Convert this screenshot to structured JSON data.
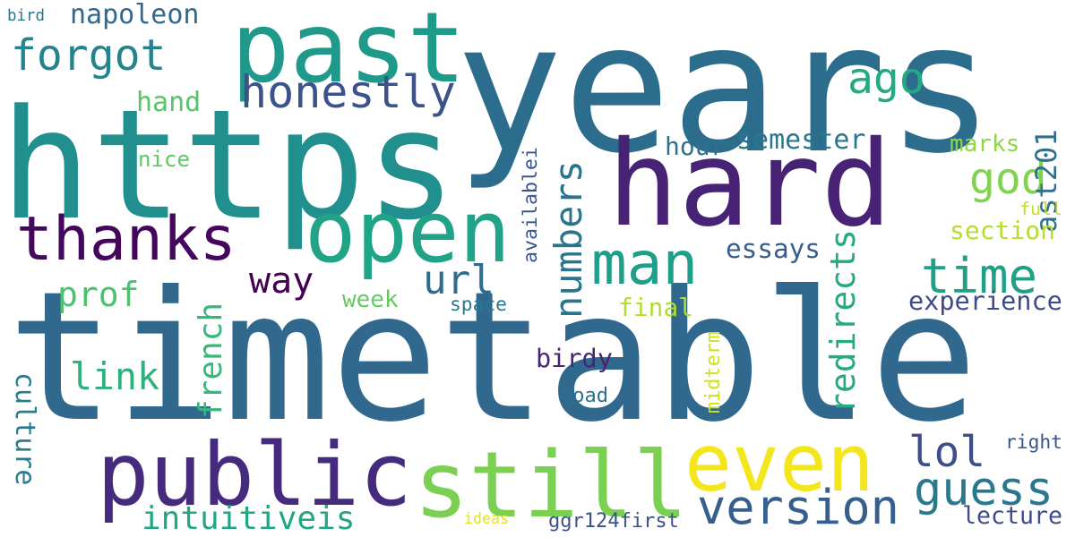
{
  "words": [
    {
      "id": "timetable",
      "text": "timetable",
      "color": "#31688e",
      "vertical": false
    },
    {
      "id": "years",
      "text": "years",
      "color": "#2c6d8e",
      "vertical": false
    },
    {
      "id": "https",
      "text": "https",
      "color": "#218f8d",
      "vertical": false
    },
    {
      "id": "hard",
      "text": "hard",
      "color": "#472275",
      "vertical": false
    },
    {
      "id": "past",
      "text": "past",
      "color": "#1f9a8a",
      "vertical": false
    },
    {
      "id": "public",
      "text": "public",
      "color": "#452a7d",
      "vertical": false
    },
    {
      "id": "open",
      "text": "open",
      "color": "#20a386",
      "vertical": false
    },
    {
      "id": "still",
      "text": "still",
      "color": "#7ad151",
      "vertical": false
    },
    {
      "id": "even",
      "text": "even",
      "color": "#f4e61e",
      "vertical": false
    },
    {
      "id": "thanks",
      "text": "thanks",
      "color": "#45075d",
      "vertical": false
    },
    {
      "id": "man",
      "text": "man",
      "color": "#1f9e89",
      "vertical": false
    },
    {
      "id": "honestly",
      "text": "honestly",
      "color": "#3b528b",
      "vertical": false
    },
    {
      "id": "forgot",
      "text": "forgot",
      "color": "#25838e",
      "vertical": false
    },
    {
      "id": "version",
      "text": "version",
      "color": "#355f8d",
      "vertical": false
    },
    {
      "id": "guess",
      "text": "guess",
      "color": "#2a788e",
      "vertical": false
    },
    {
      "id": "numbers",
      "text": "numbers",
      "color": "#2c738e",
      "vertical": true
    },
    {
      "id": "redirects",
      "text": "redirects",
      "color": "#25ab82",
      "vertical": true
    },
    {
      "id": "time",
      "text": "time",
      "color": "#1fa187",
      "vertical": false
    },
    {
      "id": "url",
      "text": "url",
      "color": "#2f6c8e",
      "vertical": false
    },
    {
      "id": "god",
      "text": "god",
      "color": "#7fd34e",
      "vertical": false
    },
    {
      "id": "ago",
      "text": "ago",
      "color": "#24aa83",
      "vertical": false
    },
    {
      "id": "way",
      "text": "way",
      "color": "#440154",
      "vertical": false
    },
    {
      "id": "lol",
      "text": "lol",
      "color": "#3d4e8a",
      "vertical": false
    },
    {
      "id": "culture",
      "text": "culture",
      "color": "#297b8e",
      "vertical": true
    },
    {
      "id": "intuitiveis",
      "text": "intuitiveis",
      "color": "#22a785",
      "vertical": false
    },
    {
      "id": "french",
      "text": "french",
      "color": "#37b878",
      "vertical": true
    },
    {
      "id": "link",
      "text": "link",
      "color": "#2db27d",
      "vertical": false
    },
    {
      "id": "prof",
      "text": "prof",
      "color": "#4cc26c",
      "vertical": false
    },
    {
      "id": "ast201",
      "text": "ast201",
      "color": "#2e6f8e",
      "vertical": true
    },
    {
      "id": "napoleon",
      "text": "napoleon",
      "color": "#31688e",
      "vertical": false
    },
    {
      "id": "hand",
      "text": "hand",
      "color": "#56c667",
      "vertical": false
    },
    {
      "id": "semester",
      "text": "semester",
      "color": "#2a768e",
      "vertical": false
    },
    {
      "id": "hour",
      "text": "hour",
      "color": "#2d718e",
      "vertical": false
    },
    {
      "id": "essays",
      "text": "essays",
      "color": "#355e8d",
      "vertical": false
    },
    {
      "id": "experience",
      "text": "experience",
      "color": "#3e4a89",
      "vertical": false
    },
    {
      "id": "section",
      "text": "section",
      "color": "#b5de2b",
      "vertical": false
    },
    {
      "id": "marks",
      "text": "marks",
      "color": "#8fd744",
      "vertical": false
    },
    {
      "id": "full",
      "text": "full",
      "color": "#c2df23",
      "vertical": false
    },
    {
      "id": "final",
      "text": "final",
      "color": "#b0dd2f",
      "vertical": false
    },
    {
      "id": "week",
      "text": "week",
      "color": "#65cb5e",
      "vertical": false
    },
    {
      "id": "space",
      "text": "space",
      "color": "#2a788e",
      "vertical": false
    },
    {
      "id": "birdy",
      "text": "birdy",
      "color": "#482475",
      "vertical": false
    },
    {
      "id": "midterm",
      "text": "midterm",
      "color": "#d0e11c",
      "vertical": true
    },
    {
      "id": "load",
      "text": "load",
      "color": "#2d708e",
      "vertical": false
    },
    {
      "id": "availablei",
      "text": "availablei",
      "color": "#3a548c",
      "vertical": true
    },
    {
      "id": "nice",
      "text": "nice",
      "color": "#5ec962",
      "vertical": false
    },
    {
      "id": "bird",
      "text": "bird",
      "color": "#2a788e",
      "vertical": false
    },
    {
      "id": "right",
      "text": "right",
      "color": "#39568c",
      "vertical": false
    },
    {
      "id": "lecture",
      "text": "lecture",
      "color": "#3e4c8a",
      "vertical": false
    },
    {
      "id": "ideas",
      "text": "ideas",
      "color": "#e5e419",
      "vertical": false
    },
    {
      "id": "ggr124first",
      "text": "ggr124first",
      "color": "#3b528b",
      "vertical": false
    }
  ]
}
